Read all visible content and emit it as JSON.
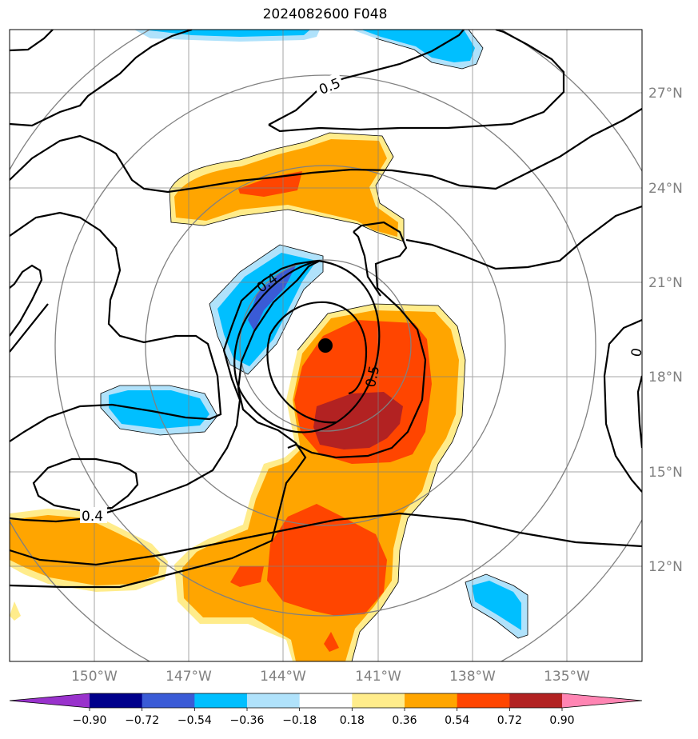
{
  "title": "2024082600 F048",
  "map": {
    "lat_labels": [
      "27°N",
      "24°N",
      "21°N",
      "18°N",
      "15°N",
      "12°N"
    ],
    "lon_labels": [
      "150°W",
      "147°W",
      "144°W",
      "141°W",
      "138°W",
      "135°W"
    ],
    "contour_labels": [
      "0.5",
      "0.4",
      "0.5",
      "0.4",
      "0"
    ],
    "storm_center_marker": "filled-black-dot"
  },
  "colorbar": {
    "tick_labels": [
      "−0.90",
      "−0.72",
      "−0.54",
      "−0.36",
      "−0.18",
      "0.18",
      "0.36",
      "0.54",
      "0.72",
      "0.90"
    ],
    "colors": [
      "#9932cc",
      "#00008b",
      "#3a5bd6",
      "#00bfff",
      "#b0e2fb",
      "#ffffff",
      "#ffec8b",
      "#ffa500",
      "#ff4500",
      "#b22222",
      "#ff85b3"
    ]
  }
}
